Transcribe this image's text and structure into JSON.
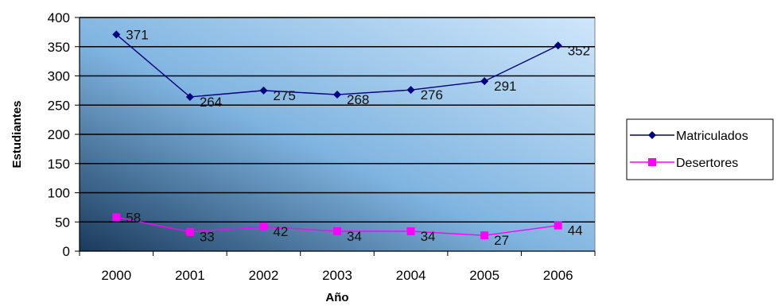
{
  "chart_data": {
    "type": "line",
    "title": "",
    "xlabel": "Año",
    "ylabel": "Estudiantes",
    "categories": [
      "2000",
      "2001",
      "2002",
      "2003",
      "2004",
      "2005",
      "2006"
    ],
    "ylim": [
      0,
      400
    ],
    "yticks": [
      0,
      50,
      100,
      150,
      200,
      250,
      300,
      350,
      400
    ],
    "grid": true,
    "legend_position": "right",
    "series": [
      {
        "name": "Matriculados",
        "values": [
          371,
          264,
          275,
          268,
          276,
          291,
          352
        ],
        "color": "#000080",
        "marker": "diamond"
      },
      {
        "name": "Desertores",
        "values": [
          58,
          33,
          42,
          34,
          34,
          27,
          44
        ],
        "color": "#ff00ff",
        "marker": "square"
      }
    ],
    "plot_background": [
      "#1a3a5c",
      "#7fb4e0",
      "#cfe6fa"
    ]
  }
}
